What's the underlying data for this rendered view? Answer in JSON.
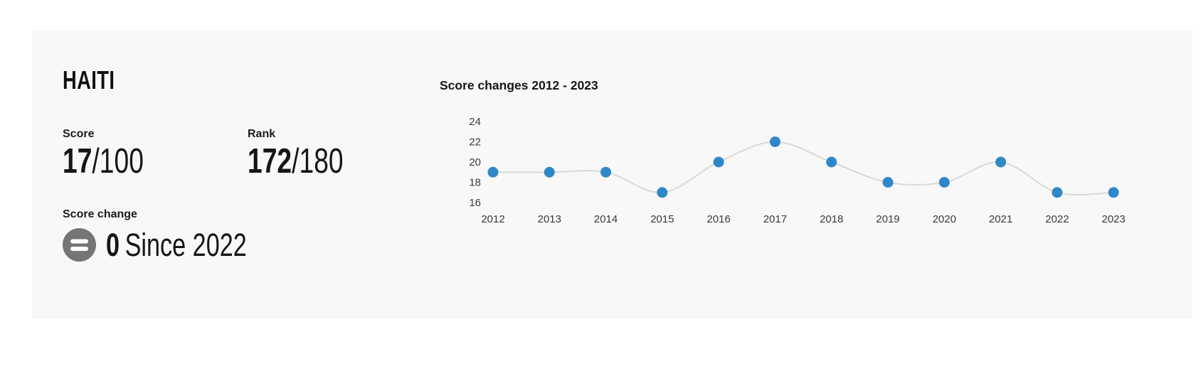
{
  "card": {
    "country_name": "HAITI",
    "score": {
      "label": "Score",
      "value": "17",
      "denominator": "/100"
    },
    "rank": {
      "label": "Rank",
      "value": "172",
      "denominator": "/180"
    },
    "score_change": {
      "label": "Score change",
      "value": "0",
      "since": "Since 2022",
      "icon": "equals-circle-icon",
      "icon_color": "#757575"
    }
  },
  "chart_data": {
    "type": "line",
    "title": "Score changes 2012 - 2023",
    "x": [
      "2012",
      "2013",
      "2014",
      "2015",
      "2016",
      "2017",
      "2018",
      "2019",
      "2020",
      "2021",
      "2022",
      "2023"
    ],
    "series": [
      {
        "name": "Score",
        "values": [
          19,
          19,
          19,
          17,
          20,
          22,
          20,
          18,
          18,
          20,
          17,
          17
        ]
      }
    ],
    "yticks": [
      24,
      22,
      20,
      18,
      16
    ],
    "ylim": [
      16,
      24
    ],
    "grid": false,
    "legend_position": "none",
    "colors": {
      "point": "#3087c8",
      "line": "#d9d9d9",
      "axis_text": "#3a3a3a"
    }
  }
}
